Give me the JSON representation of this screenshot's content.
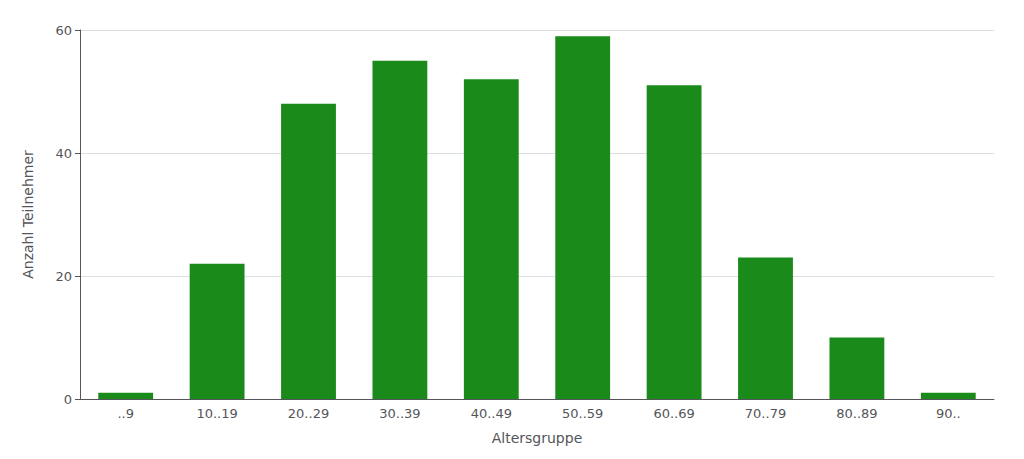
{
  "chart_data": {
    "type": "bar",
    "xlabel": "Altersgruppe",
    "ylabel": "Anzahl Teilnehmer",
    "categories": [
      "..9",
      "10..19",
      "20..29",
      "30..39",
      "40..49",
      "50..59",
      "60..69",
      "70..79",
      "80..89",
      "90.."
    ],
    "values": [
      1,
      22,
      48,
      55,
      52,
      59,
      51,
      23,
      10,
      1
    ],
    "color": "#1a8a1a",
    "ylim": [
      0,
      60
    ],
    "yticks": [
      0,
      20,
      40,
      60
    ],
    "grid": true
  }
}
